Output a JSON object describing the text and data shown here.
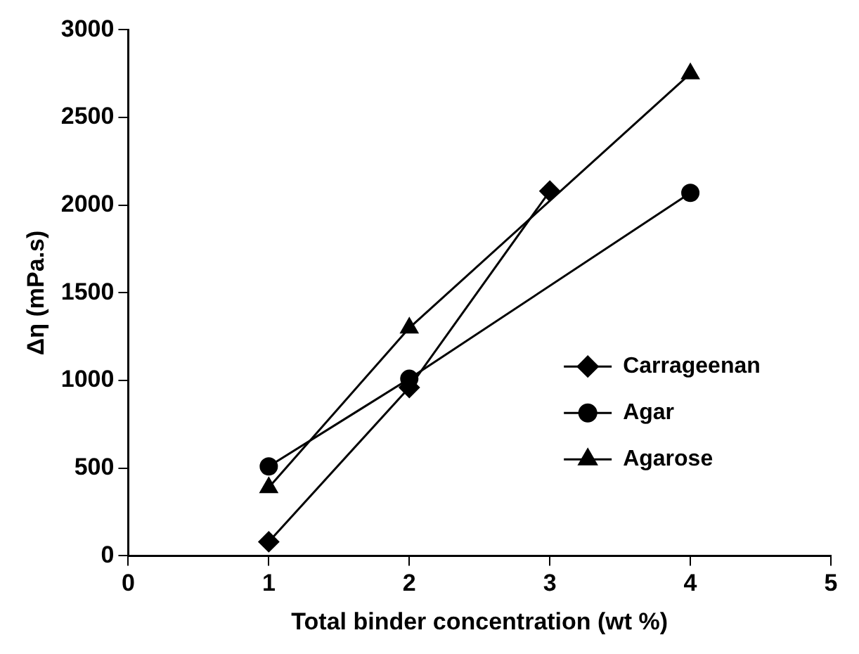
{
  "chart_data": {
    "type": "line",
    "xlabel": "Total binder concentration (wt %)",
    "ylabel": "Δη (mPa.s)",
    "xlim": [
      0,
      5
    ],
    "xticks": [
      0,
      1,
      2,
      3,
      4,
      5
    ],
    "ylim": [
      0,
      3000
    ],
    "yticks": [
      0,
      500,
      1000,
      1500,
      2000,
      2500,
      3000
    ],
    "grid": false,
    "legend": "right",
    "line_style": "solid",
    "series": [
      {
        "name": "Carrageenan",
        "color": "#000000",
        "marker": "diamond",
        "x": [
          1,
          2,
          3
        ],
        "values": [
          80,
          960,
          2080
        ]
      },
      {
        "name": "Agar",
        "color": "#000000",
        "marker": "circle",
        "x": [
          1,
          2,
          4
        ],
        "values": [
          510,
          1010,
          2070
        ]
      },
      {
        "name": "Agarose",
        "color": "#000000",
        "marker": "triangle",
        "x": [
          1,
          2,
          4
        ],
        "values": [
          390,
          1300,
          2750
        ]
      }
    ]
  }
}
